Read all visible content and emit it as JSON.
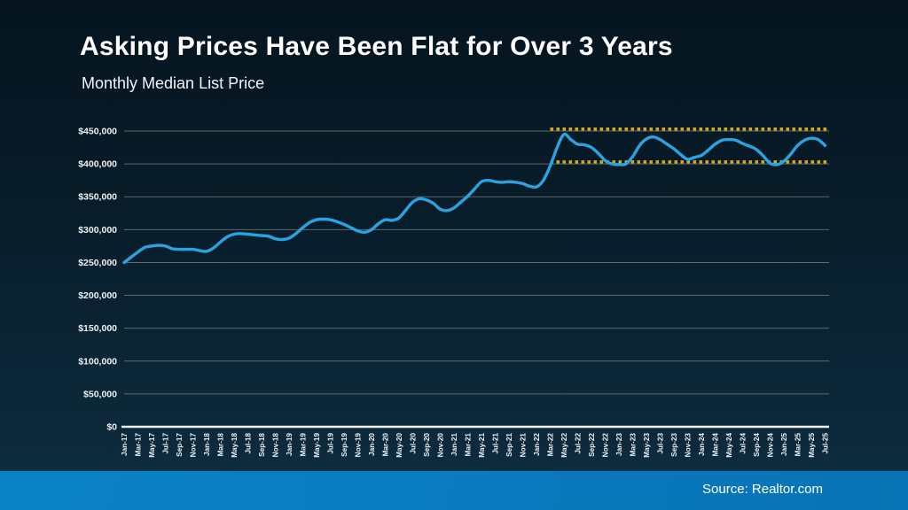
{
  "slide": {
    "title": "Asking Prices Have Been Flat for Over 3 Years",
    "subtitle": "Monthly Median List Price",
    "source": "Source: Realtor.com"
  },
  "colors": {
    "line": "#2aa3e0",
    "band_dotted": "#d9a91c",
    "gridline": "#6d767c",
    "axis_line": "#eef3f5",
    "tick_text": "#eef3f5",
    "footer_blue": "#0a7cc0",
    "background": "#081c29"
  },
  "chart_data": {
    "type": "line",
    "title": "Monthly Median List Price",
    "x_start": "Jan-17",
    "x_end": "Jul-25",
    "x_interval": "monthly",
    "x_tick_labels": [
      "Jan-17",
      "Mar-17",
      "May-17",
      "Jul-17",
      "Sep-17",
      "Nov-17",
      "Jan-18",
      "Mar-18",
      "May-18",
      "Jul-18",
      "Sep-18",
      "Nov-18",
      "Jan-19",
      "Mar-19",
      "May-19",
      "Jul-19",
      "Sep-19",
      "Nov-19",
      "Jan-20",
      "Mar-20",
      "May-20",
      "Jul-20",
      "Sep-20",
      "Nov-20",
      "Jan-21",
      "Mar-21",
      "May-21",
      "Jul-21",
      "Sep-21",
      "Nov-21",
      "Jan-22",
      "Mar-22",
      "May-22",
      "Jul-22",
      "Sep-22",
      "Nov-22",
      "Jan-23",
      "Mar-23",
      "May-23",
      "Jul-23",
      "Sep-23",
      "Nov-23",
      "Jan-24",
      "Mar-24",
      "May-24",
      "Jul-24",
      "Sep-24",
      "Nov-24",
      "Jan-25",
      "Mar-25",
      "May-25",
      "Jul-25"
    ],
    "y_tick_labels": [
      "$0",
      "$50,000",
      "$100,000",
      "$150,000",
      "$200,000",
      "$250,000",
      "$300,000",
      "$350,000",
      "$400,000",
      "$450,000"
    ],
    "ylim": [
      0,
      450000
    ],
    "y_step": 50000,
    "grid": "horizontal",
    "legend": "none",
    "values": [
      250000,
      258000,
      266000,
      273000,
      275000,
      276000,
      275000,
      271000,
      270000,
      270000,
      270000,
      268000,
      267000,
      272000,
      281000,
      289000,
      293000,
      294000,
      293000,
      292000,
      291000,
      290000,
      286000,
      285000,
      287000,
      294000,
      303000,
      311000,
      315000,
      316000,
      315000,
      312000,
      308000,
      303000,
      298000,
      296000,
      300000,
      309000,
      315000,
      314000,
      318000,
      330000,
      342000,
      347000,
      345000,
      340000,
      331000,
      329000,
      333000,
      342000,
      351000,
      362000,
      373000,
      375000,
      373000,
      372000,
      373000,
      372000,
      370000,
      366000,
      365000,
      375000,
      397000,
      425000,
      445000,
      437000,
      430000,
      429000,
      425000,
      416000,
      405000,
      400000,
      399000,
      400000,
      411000,
      428000,
      438000,
      441000,
      437000,
      430000,
      423000,
      414000,
      407000,
      410000,
      413000,
      421000,
      430000,
      436000,
      437000,
      436000,
      431000,
      427000,
      422000,
      412000,
      401000,
      399000,
      404000,
      415000,
      428000,
      436000,
      439000,
      437000,
      428000
    ],
    "annotations": [
      {
        "type": "dotted-line",
        "y": 450000,
        "from": "Mar-22",
        "to": "Jul-25"
      },
      {
        "type": "dotted-line",
        "y": 400000,
        "from": "Mar-22",
        "to": "Jul-25"
      }
    ]
  }
}
